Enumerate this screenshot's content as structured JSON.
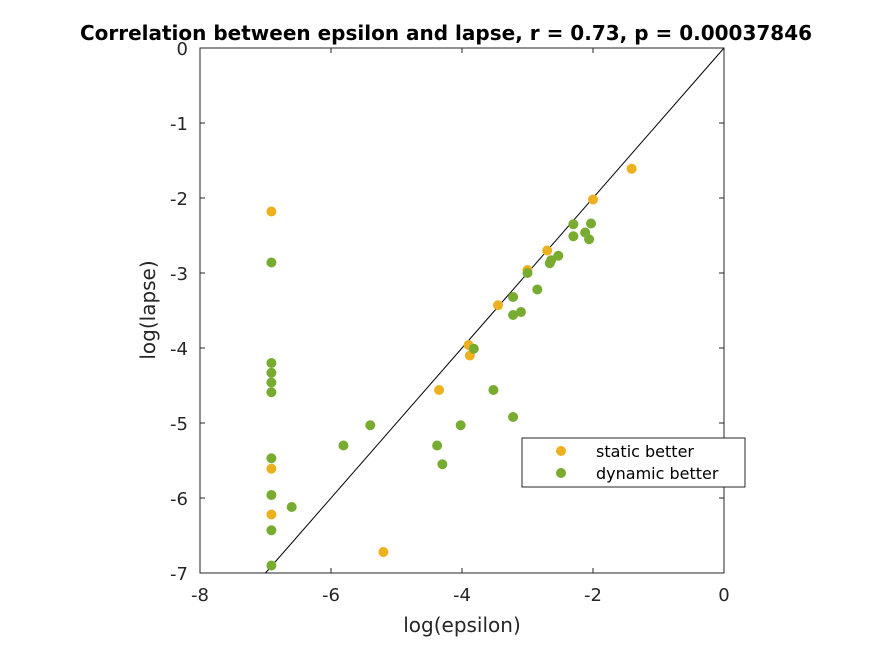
{
  "chart_data": {
    "type": "scatter",
    "title": "Correlation between epsilon and lapse, r = 0.73, p = 0.00037846",
    "xlabel": "log(epsilon)",
    "ylabel": "log(lapse)",
    "xlim": [
      -8,
      0
    ],
    "ylim": [
      -7,
      0
    ],
    "xticks": [
      "-8",
      "-6",
      "-4",
      "-2",
      "0"
    ],
    "yticks": [
      "0",
      "-1",
      "-2",
      "-3",
      "-4",
      "-5",
      "-6",
      "-7"
    ],
    "grid": false,
    "legend_position": "lower-right",
    "reference_line": {
      "from": [
        -7,
        -7
      ],
      "to": [
        0,
        0
      ],
      "color": "#000000"
    },
    "series": [
      {
        "name": "static better",
        "color": "#EDB120",
        "points": [
          [
            -6.91,
            -2.18
          ],
          [
            -6.91,
            -5.61
          ],
          [
            -6.91,
            -6.22
          ],
          [
            -5.2,
            -6.72
          ],
          [
            -4.35,
            -4.56
          ],
          [
            -3.9,
            -3.96
          ],
          [
            -3.88,
            -4.1
          ],
          [
            -3.45,
            -3.43
          ],
          [
            -3.0,
            -2.96
          ],
          [
            -2.7,
            -2.7
          ],
          [
            -2.0,
            -2.02
          ],
          [
            -1.41,
            -1.61
          ]
        ]
      },
      {
        "name": "dynamic better",
        "color": "#77AC30",
        "points": [
          [
            -6.91,
            -2.86
          ],
          [
            -6.91,
            -4.2
          ],
          [
            -6.91,
            -4.33
          ],
          [
            -6.91,
            -4.46
          ],
          [
            -6.91,
            -4.59
          ],
          [
            -6.91,
            -5.47
          ],
          [
            -6.91,
            -5.96
          ],
          [
            -6.91,
            -6.43
          ],
          [
            -6.91,
            -6.9
          ],
          [
            -6.6,
            -6.12
          ],
          [
            -5.81,
            -5.3
          ],
          [
            -5.4,
            -5.03
          ],
          [
            -4.38,
            -5.3
          ],
          [
            -4.3,
            -5.55
          ],
          [
            -4.02,
            -5.03
          ],
          [
            -3.82,
            -4.01
          ],
          [
            -3.52,
            -4.56
          ],
          [
            -3.22,
            -4.92
          ],
          [
            -3.22,
            -3.32
          ],
          [
            -3.22,
            -3.56
          ],
          [
            -3.1,
            -3.52
          ],
          [
            -3.0,
            -3.0
          ],
          [
            -2.85,
            -3.22
          ],
          [
            -2.66,
            -2.87
          ],
          [
            -2.64,
            -2.83
          ],
          [
            -2.53,
            -2.77
          ],
          [
            -2.3,
            -2.51
          ],
          [
            -2.3,
            -2.35
          ],
          [
            -2.12,
            -2.46
          ],
          [
            -2.06,
            -2.55
          ],
          [
            -2.03,
            -2.34
          ]
        ]
      }
    ]
  }
}
